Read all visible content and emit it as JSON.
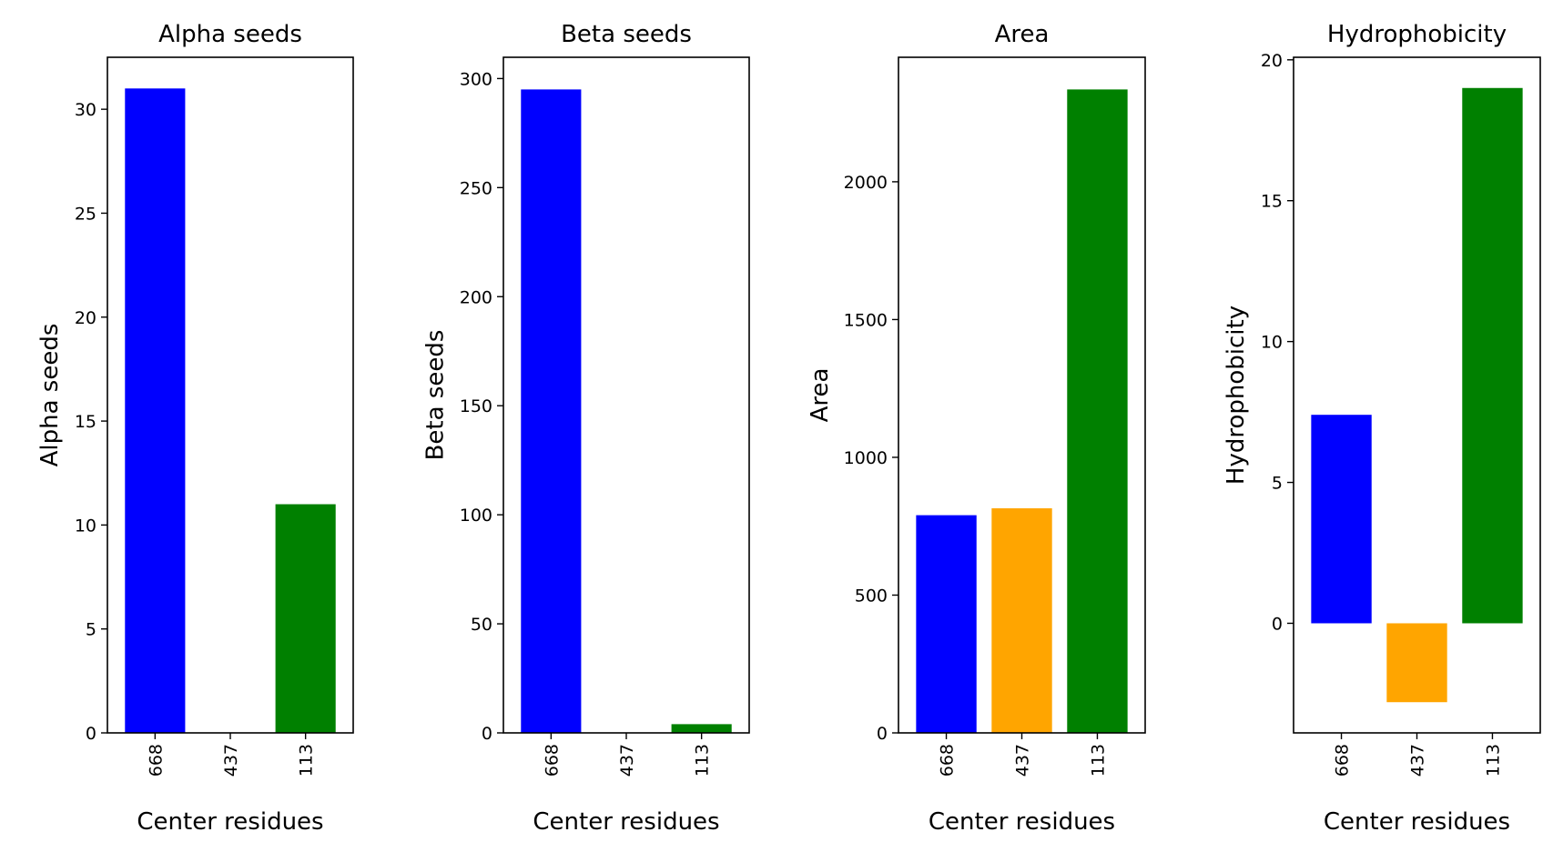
{
  "chart_data": [
    {
      "type": "bar",
      "title": "Alpha seeds",
      "xlabel": "Center residues",
      "ylabel": "Alpha seeds",
      "categories": [
        "668",
        "437",
        "113"
      ],
      "values": [
        31,
        0,
        11
      ],
      "colors": [
        "#0000ff",
        "#ffa500",
        "#008000"
      ],
      "ylim": [
        0,
        32.5
      ],
      "yticks": [
        0,
        5,
        10,
        15,
        20,
        25,
        30
      ],
      "grid": false
    },
    {
      "type": "bar",
      "title": "Beta seeds",
      "xlabel": "Center residues",
      "ylabel": "Beta seeds",
      "categories": [
        "668",
        "437",
        "113"
      ],
      "values": [
        295,
        0,
        4
      ],
      "colors": [
        "#0000ff",
        "#ffa500",
        "#008000"
      ],
      "ylim": [
        0,
        309.75
      ],
      "yticks": [
        0,
        50,
        100,
        150,
        200,
        250,
        300
      ],
      "grid": false
    },
    {
      "type": "bar",
      "title": "Area",
      "xlabel": "Center residues",
      "ylabel": "Area",
      "categories": [
        "668",
        "437",
        "113"
      ],
      "values": [
        790,
        815,
        2335
      ],
      "colors": [
        "#0000ff",
        "#ffa500",
        "#008000"
      ],
      "ylim": [
        0,
        2451.75
      ],
      "yticks": [
        0,
        500,
        1000,
        1500,
        2000
      ],
      "grid": false
    },
    {
      "type": "bar",
      "title": "Hydrophobicity",
      "xlabel": "Center residues",
      "ylabel": "Hydrophobicity",
      "categories": [
        "668",
        "437",
        "113"
      ],
      "values": [
        7.4,
        -2.8,
        19.0
      ],
      "colors": [
        "#0000ff",
        "#ffa500",
        "#008000"
      ],
      "ylim": [
        -3.89,
        20.09
      ],
      "yticks": [
        0,
        5,
        10,
        15,
        20
      ],
      "grid": false
    }
  ]
}
